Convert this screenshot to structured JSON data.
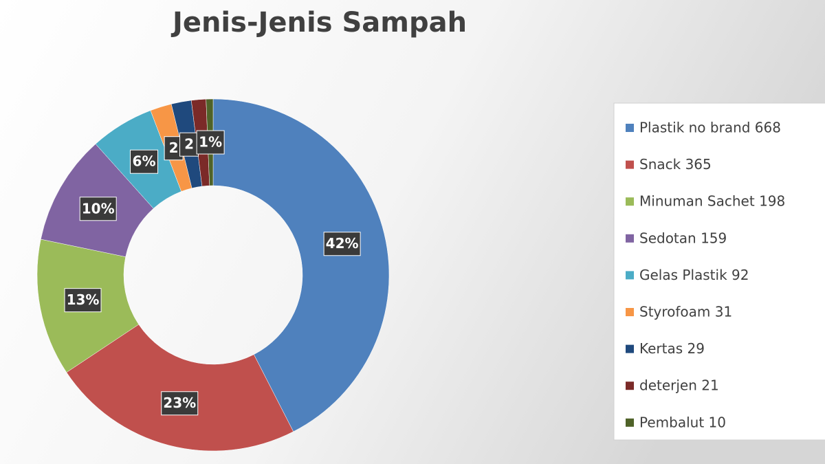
{
  "chart_data": {
    "type": "donut",
    "title": "Jenis-Jenis Sampah",
    "categories": [
      "Plastik no brand 668",
      "Snack 365",
      "Minuman Sachet 198",
      "Sedotan 159",
      "Gelas Plastik 92",
      "Styrofoam 31",
      "Kertas 29",
      "deterjen 21",
      "Pembalut 10"
    ],
    "values": [
      42.47,
      23.2,
      12.59,
      10.11,
      5.85,
      1.97,
      1.84,
      1.34,
      0.64
    ],
    "value_labels": [
      "42%",
      "23%",
      "13%",
      "10%",
      "6%",
      "2",
      "2",
      null,
      "1%"
    ],
    "colors": [
      "#4f81bd",
      "#c0504d",
      "#9bbb59",
      "#8064a2",
      "#4bacc6",
      "#f79646",
      "#1f497d",
      "#7b2a28",
      "#4f6228"
    ],
    "legend": "right"
  }
}
